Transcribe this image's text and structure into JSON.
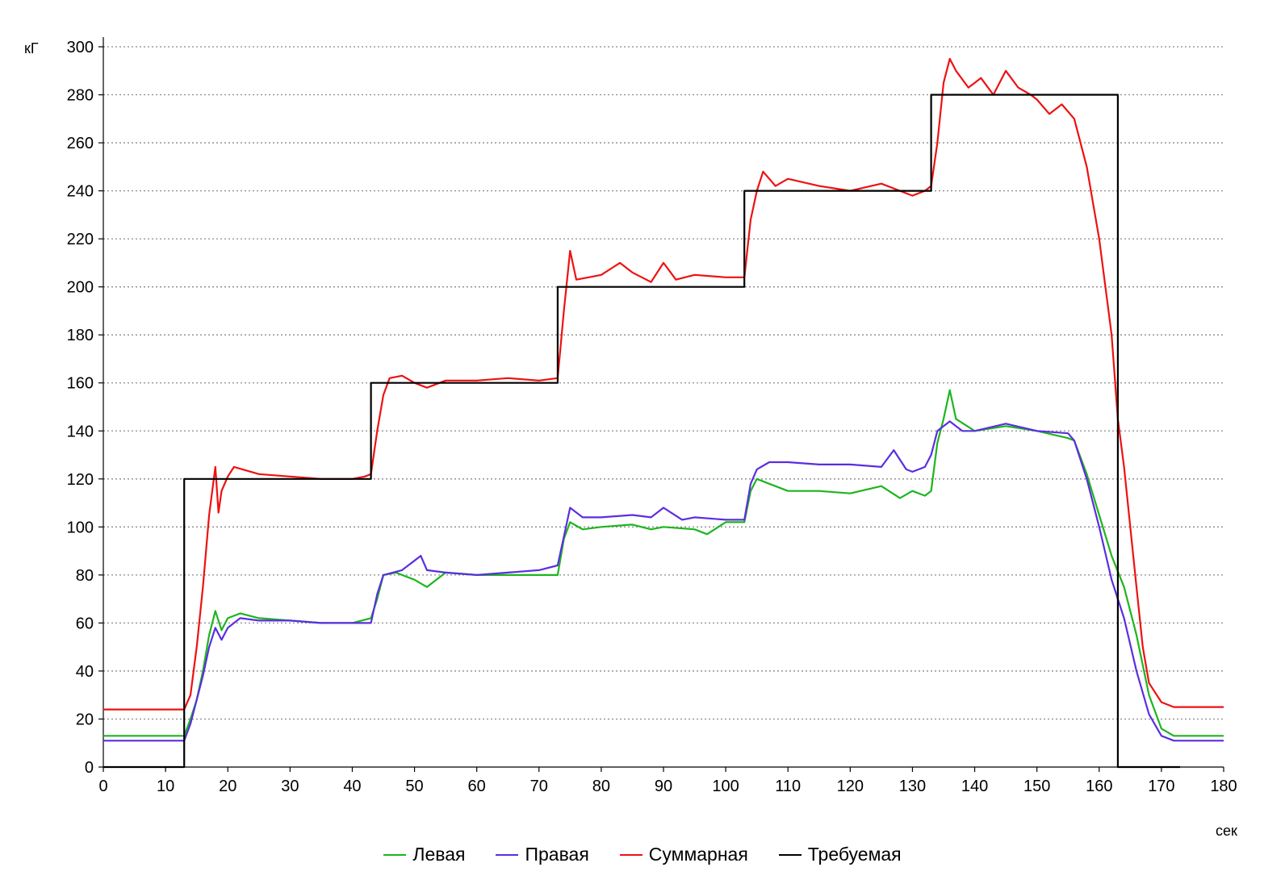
{
  "chart_data": {
    "type": "line",
    "title": "",
    "ylabel": "кГ",
    "xlabel": "сек",
    "xlim": [
      0,
      180
    ],
    "ylim": [
      0,
      300
    ],
    "x_ticks": [
      0,
      10,
      20,
      30,
      40,
      50,
      60,
      70,
      80,
      90,
      100,
      110,
      120,
      130,
      140,
      150,
      160,
      170,
      180
    ],
    "y_ticks": [
      0,
      20,
      40,
      60,
      80,
      100,
      120,
      140,
      160,
      180,
      200,
      220,
      240,
      260,
      280,
      300
    ],
    "grid": "horizontal dotted",
    "legend_position": "bottom-center",
    "series": [
      {
        "name": "Левая",
        "color": "#1db51d",
        "points": [
          [
            0,
            13
          ],
          [
            13,
            13
          ],
          [
            14,
            20
          ],
          [
            15,
            28
          ],
          [
            16,
            40
          ],
          [
            17,
            55
          ],
          [
            18,
            65
          ],
          [
            19,
            57
          ],
          [
            20,
            62
          ],
          [
            22,
            64
          ],
          [
            25,
            62
          ],
          [
            30,
            61
          ],
          [
            35,
            60
          ],
          [
            40,
            60
          ],
          [
            43,
            62
          ],
          [
            44,
            70
          ],
          [
            45,
            80
          ],
          [
            47,
            81
          ],
          [
            50,
            78
          ],
          [
            52,
            75
          ],
          [
            55,
            81
          ],
          [
            60,
            80
          ],
          [
            65,
            80
          ],
          [
            70,
            80
          ],
          [
            73,
            80
          ],
          [
            74,
            95
          ],
          [
            75,
            102
          ],
          [
            77,
            99
          ],
          [
            80,
            100
          ],
          [
            85,
            101
          ],
          [
            88,
            99
          ],
          [
            90,
            100
          ],
          [
            95,
            99
          ],
          [
            97,
            97
          ],
          [
            100,
            102
          ],
          [
            103,
            102
          ],
          [
            104,
            115
          ],
          [
            105,
            120
          ],
          [
            107,
            118
          ],
          [
            110,
            115
          ],
          [
            115,
            115
          ],
          [
            120,
            114
          ],
          [
            125,
            117
          ],
          [
            128,
            112
          ],
          [
            130,
            115
          ],
          [
            132,
            113
          ],
          [
            133,
            115
          ],
          [
            134,
            135
          ],
          [
            135,
            145
          ],
          [
            136,
            157
          ],
          [
            137,
            145
          ],
          [
            140,
            140
          ],
          [
            145,
            142
          ],
          [
            150,
            140
          ],
          [
            155,
            137
          ],
          [
            156,
            136
          ],
          [
            158,
            122
          ],
          [
            160,
            105
          ],
          [
            162,
            88
          ],
          [
            164,
            75
          ],
          [
            166,
            55
          ],
          [
            168,
            30
          ],
          [
            170,
            16
          ],
          [
            172,
            13
          ],
          [
            180,
            13
          ]
        ]
      },
      {
        "name": "Правая",
        "color": "#5a2ee0",
        "points": [
          [
            0,
            11
          ],
          [
            13,
            11
          ],
          [
            14,
            18
          ],
          [
            15,
            28
          ],
          [
            16,
            38
          ],
          [
            17,
            50
          ],
          [
            18,
            58
          ],
          [
            19,
            53
          ],
          [
            20,
            58
          ],
          [
            22,
            62
          ],
          [
            25,
            61
          ],
          [
            30,
            61
          ],
          [
            35,
            60
          ],
          [
            40,
            60
          ],
          [
            43,
            60
          ],
          [
            44,
            72
          ],
          [
            45,
            80
          ],
          [
            48,
            82
          ],
          [
            51,
            88
          ],
          [
            52,
            82
          ],
          [
            55,
            81
          ],
          [
            60,
            80
          ],
          [
            65,
            81
          ],
          [
            70,
            82
          ],
          [
            73,
            84
          ],
          [
            74,
            96
          ],
          [
            75,
            108
          ],
          [
            77,
            104
          ],
          [
            80,
            104
          ],
          [
            85,
            105
          ],
          [
            88,
            104
          ],
          [
            90,
            108
          ],
          [
            93,
            103
          ],
          [
            95,
            104
          ],
          [
            100,
            103
          ],
          [
            103,
            103
          ],
          [
            104,
            118
          ],
          [
            105,
            124
          ],
          [
            107,
            127
          ],
          [
            110,
            127
          ],
          [
            115,
            126
          ],
          [
            120,
            126
          ],
          [
            125,
            125
          ],
          [
            127,
            132
          ],
          [
            129,
            124
          ],
          [
            130,
            123
          ],
          [
            132,
            125
          ],
          [
            133,
            130
          ],
          [
            134,
            140
          ],
          [
            136,
            144
          ],
          [
            138,
            140
          ],
          [
            140,
            140
          ],
          [
            145,
            143
          ],
          [
            150,
            140
          ],
          [
            155,
            139
          ],
          [
            156,
            136
          ],
          [
            158,
            120
          ],
          [
            160,
            100
          ],
          [
            162,
            78
          ],
          [
            164,
            62
          ],
          [
            166,
            40
          ],
          [
            168,
            22
          ],
          [
            170,
            13
          ],
          [
            172,
            11
          ],
          [
            180,
            11
          ]
        ]
      },
      {
        "name": "Суммарная",
        "color": "#ee1111",
        "points": [
          [
            0,
            24
          ],
          [
            13,
            24
          ],
          [
            14,
            30
          ],
          [
            15,
            50
          ],
          [
            16,
            75
          ],
          [
            17,
            105
          ],
          [
            18,
            125
          ],
          [
            18.5,
            106
          ],
          [
            19,
            115
          ],
          [
            20,
            121
          ],
          [
            21,
            125
          ],
          [
            25,
            122
          ],
          [
            30,
            121
          ],
          [
            35,
            120
          ],
          [
            40,
            120
          ],
          [
            42,
            121
          ],
          [
            43,
            122
          ],
          [
            44,
            140
          ],
          [
            45,
            155
          ],
          [
            46,
            162
          ],
          [
            48,
            163
          ],
          [
            50,
            160
          ],
          [
            52,
            158
          ],
          [
            55,
            161
          ],
          [
            60,
            161
          ],
          [
            65,
            162
          ],
          [
            70,
            161
          ],
          [
            73,
            162
          ],
          [
            74,
            190
          ],
          [
            75,
            215
          ],
          [
            76,
            203
          ],
          [
            78,
            204
          ],
          [
            80,
            205
          ],
          [
            83,
            210
          ],
          [
            85,
            206
          ],
          [
            88,
            202
          ],
          [
            90,
            210
          ],
          [
            92,
            203
          ],
          [
            95,
            205
          ],
          [
            100,
            204
          ],
          [
            103,
            204
          ],
          [
            104,
            228
          ],
          [
            105,
            240
          ],
          [
            106,
            248
          ],
          [
            108,
            242
          ],
          [
            110,
            245
          ],
          [
            115,
            242
          ],
          [
            120,
            240
          ],
          [
            125,
            243
          ],
          [
            128,
            240
          ],
          [
            130,
            238
          ],
          [
            132,
            240
          ],
          [
            133,
            242
          ],
          [
            134,
            260
          ],
          [
            135,
            285
          ],
          [
            136,
            295
          ],
          [
            137,
            290
          ],
          [
            139,
            283
          ],
          [
            141,
            287
          ],
          [
            143,
            280
          ],
          [
            145,
            290
          ],
          [
            147,
            283
          ],
          [
            149,
            280
          ],
          [
            150,
            278
          ],
          [
            152,
            272
          ],
          [
            154,
            276
          ],
          [
            156,
            270
          ],
          [
            158,
            250
          ],
          [
            160,
            220
          ],
          [
            162,
            180
          ],
          [
            163,
            145
          ],
          [
            164,
            125
          ],
          [
            165,
            100
          ],
          [
            166,
            75
          ],
          [
            167,
            50
          ],
          [
            168,
            35
          ],
          [
            170,
            27
          ],
          [
            172,
            25
          ],
          [
            180,
            25
          ]
        ]
      },
      {
        "name": "Требуемая",
        "color": "#000000",
        "points": [
          [
            0,
            0
          ],
          [
            13,
            0
          ],
          [
            13,
            120
          ],
          [
            43,
            120
          ],
          [
            43,
            160
          ],
          [
            73,
            160
          ],
          [
            73,
            200
          ],
          [
            103,
            200
          ],
          [
            103,
            240
          ],
          [
            133,
            240
          ],
          [
            133,
            280
          ],
          [
            163,
            280
          ],
          [
            163,
            0
          ],
          [
            173,
            0
          ]
        ]
      }
    ]
  }
}
